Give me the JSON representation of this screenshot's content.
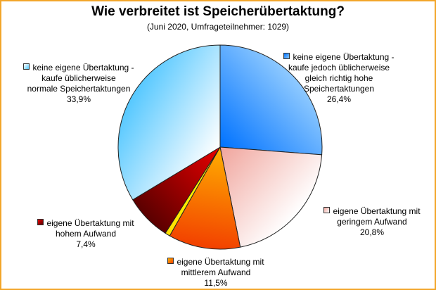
{
  "chart_data": {
    "type": "pie",
    "title": "Wie verbreitet ist Speicherübertaktung?",
    "subtitle": "(Juni 2020, Umfrageteilnehmer: 1029)",
    "slices": [
      {
        "label_lines": [
          "keine eigene Übertaktung -",
          "kaufe jedoch üblicherweise",
          "gleich richtig hohe",
          "Speichertaktungen"
        ],
        "value": 26.4,
        "value_text": "26,4%",
        "colors": [
          "#0072ff",
          "#8fcaff"
        ]
      },
      {
        "label_lines": [
          "eigene Übertaktung mit",
          "geringem Aufwand"
        ],
        "value": 20.8,
        "value_text": "20,8%",
        "colors": [
          "#f0a49c",
          "#ffffff"
        ]
      },
      {
        "label_lines": [
          "eigene Übertaktung mit",
          "mittlerem Aufwand"
        ],
        "value": 11.5,
        "value_text": "11,5%",
        "colors": [
          "#ffb000",
          "#f24000"
        ]
      },
      {
        "label_lines": [
          "eigene Übertaktung mit",
          "hohem Aufwand"
        ],
        "value": 7.4,
        "value_text": "7,4%",
        "colors": [
          "#e80000",
          "#5a0000"
        ]
      },
      {
        "label_lines": [
          "keine eigene Übertaktung -",
          "kaufe üblicherweise",
          "normale Speichertaktungen"
        ],
        "value": 33.9,
        "value_text": "33,9%",
        "colors": [
          "#ffffff",
          "#56c8ff"
        ]
      }
    ]
  },
  "special_slices": [
    {
      "after_index": 2,
      "value": 0.8,
      "colors": [
        "#ffff00",
        "#ffe000"
      ]
    }
  ]
}
